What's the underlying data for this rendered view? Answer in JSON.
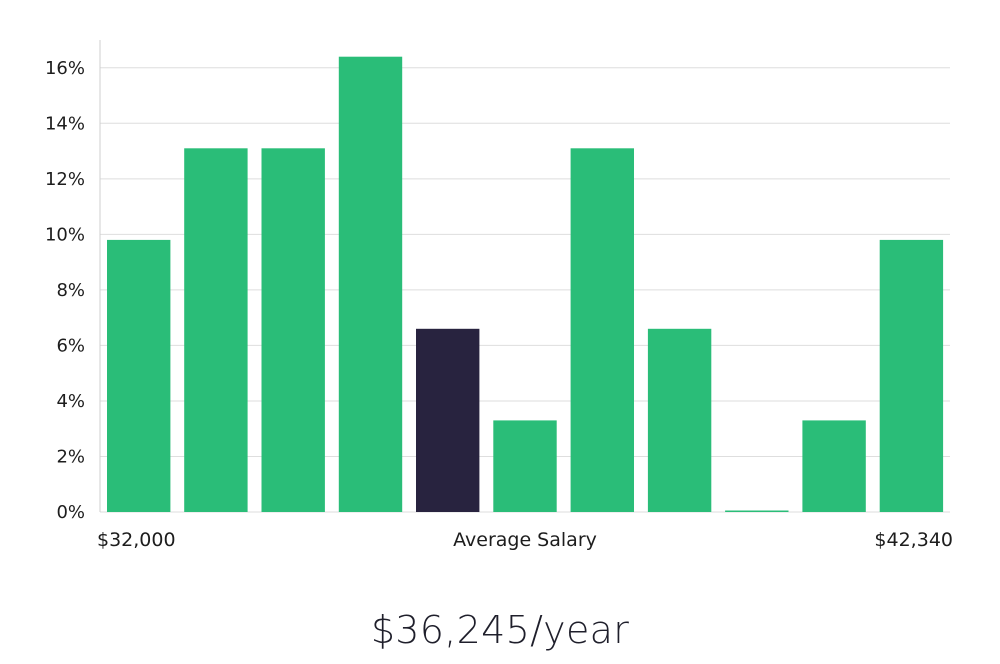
{
  "chart_data": {
    "type": "bar",
    "title": "",
    "xlabel": "Average Salary",
    "ylabel": "",
    "x_range_labels": {
      "min": "$32,000",
      "max": "$42,340"
    },
    "ylim": [
      0,
      17
    ],
    "y_ticks": [
      "0%",
      "2%",
      "4%",
      "6%",
      "8%",
      "10%",
      "12%",
      "14%",
      "16%"
    ],
    "y_tick_values": [
      0,
      2,
      4,
      6,
      8,
      10,
      12,
      14,
      16
    ],
    "values": [
      9.8,
      13.1,
      13.1,
      16.4,
      6.6,
      3.3,
      13.1,
      6.6,
      0,
      3.3,
      9.8
    ],
    "highlight_index": 4,
    "grid": true,
    "colors": {
      "bar": "#2abd78",
      "highlight": "#28233f",
      "grid": "#dedede",
      "axis": "#cfcfcf"
    }
  },
  "footer": {
    "salary": "$36,245/year"
  }
}
